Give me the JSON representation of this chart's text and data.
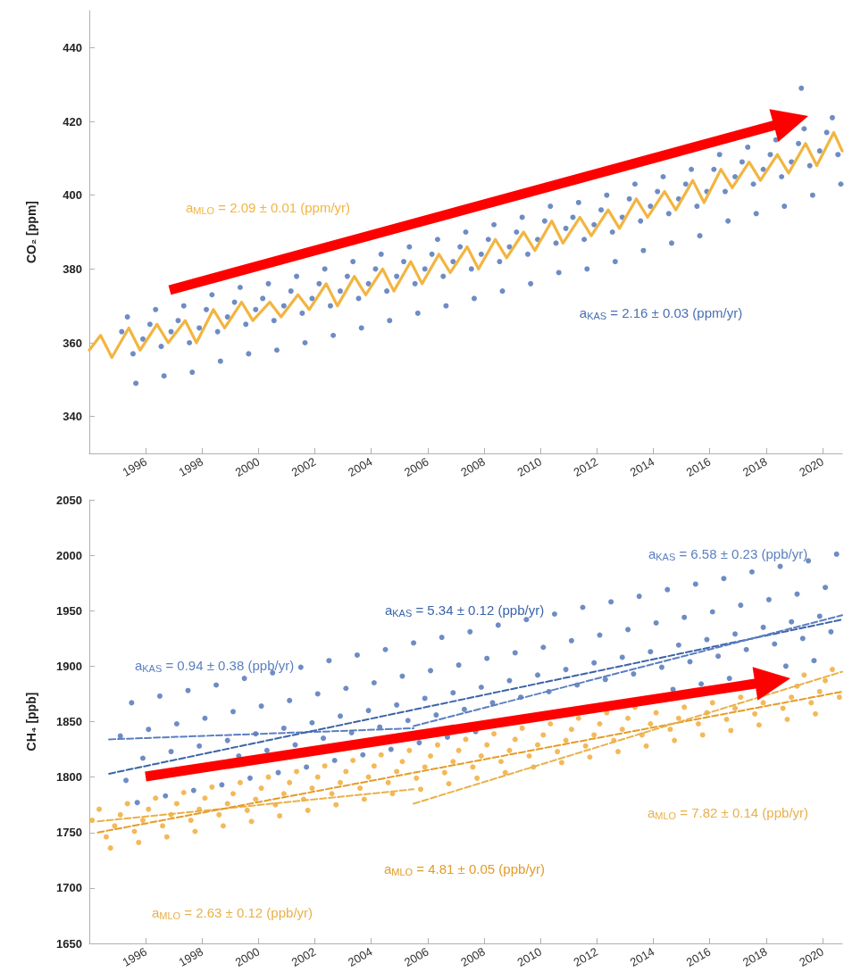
{
  "chart_data": [
    {
      "type": "scatter",
      "ylabel": "CO₂ [ppm]",
      "xlim": [
        1994,
        2020.7
      ],
      "xticks": [
        1996,
        1998,
        2000,
        2002,
        2004,
        2006,
        2008,
        2010,
        2012,
        2014,
        2016,
        2018,
        2020
      ],
      "ylim": [
        330,
        450
      ],
      "yticks": [
        340,
        360,
        380,
        400,
        420,
        440
      ],
      "marker": "circle",
      "annotations": [
        "a$_{MLO}$ = 2.09 ± 0.01 (ppm/yr)",
        "a$_{KAS}$ = 2.16 ± 0.03 (ppm/yr)"
      ],
      "series": [
        {
          "type": "line",
          "color": "#f2b541",
          "marker": "none",
          "line_style": "solid",
          "x": [
            1994.0,
            1994.4,
            1994.8,
            1995.4,
            1995.8,
            1996.4,
            1996.8,
            1997.4,
            1997.8,
            1998.4,
            1998.8,
            1999.4,
            1999.8,
            2000.4,
            2000.8,
            2001.4,
            2001.8,
            2002.4,
            2002.8,
            2003.4,
            2003.8,
            2004.4,
            2004.8,
            2005.4,
            2005.8,
            2006.4,
            2006.8,
            2007.4,
            2007.8,
            2008.4,
            2008.8,
            2009.4,
            2009.8,
            2010.4,
            2010.8,
            2011.4,
            2011.8,
            2012.4,
            2012.8,
            2013.4,
            2013.8,
            2014.4,
            2014.8,
            2015.4,
            2015.8,
            2016.4,
            2016.8,
            2017.4,
            2017.8,
            2018.4,
            2018.8,
            2019.4,
            2019.8,
            2020.4,
            2020.7
          ],
          "values": [
            358,
            362,
            356,
            364,
            358,
            365,
            360,
            366,
            360,
            369,
            364,
            371,
            366,
            371,
            367,
            373,
            369,
            376,
            370,
            378,
            373,
            380,
            374,
            382,
            376,
            384,
            379,
            386,
            380,
            388,
            383,
            390,
            385,
            393,
            387,
            394,
            389,
            396,
            391,
            399,
            394,
            401,
            396,
            404,
            398,
            407,
            402,
            409,
            404,
            411,
            406,
            414,
            408,
            417,
            412
          ]
        },
        {
          "color": "#4a6fb5",
          "x": [
            1995.15,
            1995.35,
            1995.55,
            1995.65,
            1995.9,
            1996.15,
            1996.35,
            1996.55,
            1996.65,
            1996.9,
            1997.15,
            1997.35,
            1997.55,
            1997.65,
            1997.9,
            1998.15,
            1998.35,
            1998.55,
            1998.65,
            1998.9,
            1999.15,
            1999.35,
            1999.55,
            1999.65,
            1999.9,
            2000.15,
            2000.35,
            2000.55,
            2000.65,
            2000.9,
            2001.15,
            2001.35,
            2001.55,
            2001.65,
            2001.9,
            2002.15,
            2002.35,
            2002.55,
            2002.65,
            2002.9,
            2003.15,
            2003.35,
            2003.55,
            2003.65,
            2003.9,
            2004.15,
            2004.35,
            2004.55,
            2004.65,
            2004.9,
            2005.15,
            2005.35,
            2005.55,
            2005.65,
            2005.9,
            2006.15,
            2006.35,
            2006.55,
            2006.65,
            2006.9,
            2007.15,
            2007.35,
            2007.55,
            2007.65,
            2007.9,
            2008.15,
            2008.35,
            2008.55,
            2008.65,
            2008.9,
            2009.15,
            2009.35,
            2009.55,
            2009.65,
            2009.9,
            2010.15,
            2010.35,
            2010.55,
            2010.65,
            2010.9,
            2011.15,
            2011.35,
            2011.55,
            2011.65,
            2011.9,
            2012.15,
            2012.35,
            2012.55,
            2012.65,
            2012.9,
            2013.15,
            2013.35,
            2013.55,
            2013.65,
            2013.9,
            2014.15,
            2014.35,
            2014.55,
            2014.65,
            2014.9,
            2015.15,
            2015.35,
            2015.55,
            2015.65,
            2015.9,
            2016.15,
            2016.35,
            2016.55,
            2016.65,
            2016.9,
            2017.15,
            2017.35,
            2017.55,
            2017.65,
            2017.9,
            2018.15,
            2018.35,
            2018.55,
            2018.65,
            2018.9,
            2019.15,
            2019.35,
            2019.55,
            2019.65,
            2019.9,
            2020.15,
            2020.35,
            2020.55,
            2020.65,
            2019.25
          ],
          "values": [
            363,
            367,
            357,
            349,
            361,
            365,
            369,
            359,
            351,
            363,
            366,
            370,
            360,
            352,
            364,
            369,
            373,
            363,
            355,
            367,
            371,
            375,
            365,
            357,
            369,
            372,
            376,
            366,
            358,
            370,
            374,
            378,
            368,
            360,
            372,
            376,
            380,
            370,
            362,
            374,
            378,
            382,
            372,
            364,
            376,
            380,
            384,
            374,
            366,
            378,
            382,
            386,
            376,
            368,
            380,
            384,
            388,
            378,
            370,
            382,
            386,
            390,
            380,
            372,
            384,
            388,
            392,
            382,
            374,
            386,
            390,
            394,
            384,
            376,
            388,
            393,
            397,
            387,
            379,
            391,
            394,
            398,
            388,
            380,
            392,
            396,
            400,
            390,
            382,
            394,
            399,
            403,
            393,
            385,
            397,
            401,
            405,
            395,
            387,
            399,
            403,
            407,
            397,
            389,
            401,
            407,
            411,
            401,
            393,
            405,
            409,
            413,
            403,
            395,
            407,
            411,
            415,
            405,
            397,
            409,
            414,
            418,
            408,
            400,
            412,
            417,
            421,
            411,
            403,
            429
          ]
        }
      ]
    },
    {
      "type": "scatter",
      "ylabel": "CH₄ [ppb]",
      "xlim": [
        1994,
        2020.7
      ],
      "xticks": [
        1996,
        1998,
        2000,
        2002,
        2004,
        2006,
        2008,
        2010,
        2012,
        2014,
        2016,
        2018,
        2020
      ],
      "ylim": [
        1650,
        2050
      ],
      "yticks": [
        1650,
        1700,
        1750,
        1800,
        1850,
        1900,
        1950,
        2000,
        2050
      ],
      "marker": "circle",
      "annotations": [
        "a$_{KAS}$ = 0.94 ± 0.38 (ppb/yr)",
        "a$_{KAS}$ = 5.34 ± 0.12 (ppb/yr)",
        "a$_{KAS}$ = 6.58 ± 0.23 (ppb/yr)",
        "a$_{MLO}$ = 2.63 ± 0.12 (ppb/yr)",
        "a$_{MLO}$ = 4.81 ± 0.05 (ppb/yr)",
        "a$_{MLO}$ = 7.82 ± 0.14 (ppb/yr)"
      ],
      "series": [
        {
          "type": "line",
          "color": "#5b7fc0",
          "marker": "none",
          "line_style": "dashed",
          "x": [
            1994.7,
            2005.5
          ],
          "values": [
            1834,
            1844
          ]
        },
        {
          "type": "line",
          "color": "#3c64a8",
          "marker": "none",
          "line_style": "dashed",
          "x": [
            1994.7,
            2020.7
          ],
          "values": [
            1803,
            1942
          ]
        },
        {
          "type": "line",
          "color": "#5b7fc0",
          "marker": "none",
          "line_style": "dashed",
          "x": [
            2005.5,
            2020.7
          ],
          "values": [
            1846,
            1946
          ]
        },
        {
          "type": "line",
          "color": "#eab04a",
          "marker": "none",
          "line_style": "dashed",
          "x": [
            1994.3,
            2005.5
          ],
          "values": [
            1760,
            1789
          ]
        },
        {
          "type": "line",
          "color": "#e39c2a",
          "marker": "none",
          "line_style": "dashed",
          "x": [
            1994.3,
            2020.7
          ],
          "values": [
            1750,
            1877
          ]
        },
        {
          "type": "line",
          "color": "#eab04a",
          "marker": "none",
          "line_style": "dashed",
          "x": [
            2005.5,
            2020.7
          ],
          "values": [
            1776,
            1895
          ]
        },
        {
          "color": "#4a6fb5",
          "x": [
            1995.1,
            1995.3,
            1995.5,
            1995.7,
            1995.9,
            1996.1,
            1996.3,
            1996.5,
            1996.7,
            1996.9,
            1997.1,
            1997.3,
            1997.5,
            1997.7,
            1997.9,
            1998.1,
            1998.3,
            1998.5,
            1998.7,
            1998.9,
            1999.1,
            1999.3,
            1999.5,
            1999.7,
            1999.9,
            2000.1,
            2000.3,
            2000.5,
            2000.7,
            2000.9,
            2001.1,
            2001.3,
            2001.5,
            2001.7,
            2001.9,
            2002.1,
            2002.3,
            2002.5,
            2002.7,
            2002.9,
            2003.1,
            2003.3,
            2003.5,
            2003.7,
            2003.9,
            2004.1,
            2004.3,
            2004.5,
            2004.7,
            2004.9,
            2005.1,
            2005.3,
            2005.5,
            2005.7,
            2005.9,
            2006.1,
            2006.3,
            2006.5,
            2006.7,
            2006.9,
            2007.1,
            2007.3,
            2007.5,
            2007.7,
            2007.9,
            2008.1,
            2008.3,
            2008.5,
            2008.7,
            2008.9,
            2009.1,
            2009.3,
            2009.5,
            2009.7,
            2009.9,
            2010.1,
            2010.3,
            2010.5,
            2010.7,
            2010.9,
            2011.1,
            2011.3,
            2011.5,
            2011.7,
            2011.9,
            2012.1,
            2012.3,
            2012.5,
            2012.7,
            2012.9,
            2013.1,
            2013.3,
            2013.5,
            2013.7,
            2013.9,
            2014.1,
            2014.3,
            2014.5,
            2014.7,
            2014.9,
            2015.1,
            2015.3,
            2015.5,
            2015.7,
            2015.9,
            2016.1,
            2016.3,
            2016.5,
            2016.7,
            2016.9,
            2017.1,
            2017.3,
            2017.5,
            2017.7,
            2017.9,
            2018.1,
            2018.3,
            2018.5,
            2018.7,
            2018.9,
            2019.1,
            2019.3,
            2019.5,
            2019.7,
            2019.9,
            2020.1,
            2020.3,
            2020.5
          ],
          "values": [
            1837,
            1797,
            1867,
            1777,
            1817,
            1843,
            null,
            1873,
            1783,
            1823,
            1848,
            null,
            1878,
            1788,
            1828,
            1853,
            null,
            1883,
            1793,
            1833,
            1859,
            1819,
            1889,
            1799,
            1839,
            1864,
            1824,
            1894,
            1804,
            1844,
            1869,
            1829,
            1899,
            1809,
            1849,
            1875,
            1835,
            1905,
            1815,
            1855,
            1880,
            1840,
            1910,
            1820,
            1860,
            1885,
            1845,
            1915,
            1825,
            1865,
            1891,
            1851,
            1921,
            1831,
            1871,
            1896,
            1856,
            1926,
            1836,
            1876,
            1901,
            1861,
            1931,
            1841,
            1881,
            1907,
            1867,
            1937,
            null,
            1887,
            1912,
            1872,
            1942,
            null,
            1892,
            1917,
            1877,
            1947,
            null,
            1897,
            1923,
            1883,
            1953,
            null,
            1903,
            1928,
            1888,
            1958,
            null,
            1908,
            1933,
            1893,
            1963,
            null,
            1913,
            1939,
            1899,
            1969,
            1879,
            1919,
            1944,
            1904,
            1974,
            1884,
            1924,
            1949,
            1909,
            1979,
            1889,
            1929,
            1955,
            1915,
            1985,
            null,
            1935,
            1960,
            1920,
            1990,
            1900,
            1940,
            1965,
            1925,
            1995,
            1905,
            1945,
            1971,
            1931,
            2001
          ]
        },
        {
          "color": "#f0a830",
          "x": [
            1994.1,
            1994.35,
            1994.6,
            1994.75,
            1994.9,
            1995.1,
            1995.35,
            1995.6,
            1995.75,
            1995.9,
            1996.1,
            1996.35,
            1996.6,
            1996.75,
            1996.9,
            1997.1,
            1997.35,
            1997.6,
            1997.75,
            1997.9,
            1998.1,
            1998.35,
            1998.6,
            1998.75,
            1998.9,
            1999.1,
            1999.35,
            1999.6,
            1999.75,
            1999.9,
            2000.1,
            2000.35,
            2000.6,
            2000.75,
            2000.9,
            2001.1,
            2001.35,
            2001.6,
            2001.75,
            2001.9,
            2002.1,
            2002.35,
            2002.6,
            2002.75,
            2002.9,
            2003.1,
            2003.35,
            2003.6,
            2003.75,
            2003.9,
            2004.1,
            2004.35,
            2004.6,
            2004.75,
            2004.9,
            2005.1,
            2005.35,
            2005.6,
            2005.75,
            2005.9,
            2006.1,
            2006.35,
            2006.6,
            2006.75,
            2006.9,
            2007.1,
            2007.35,
            2007.6,
            2007.75,
            2007.9,
            2008.1,
            2008.35,
            2008.6,
            2008.75,
            2008.9,
            2009.1,
            2009.35,
            2009.6,
            2009.75,
            2009.9,
            2010.1,
            2010.35,
            2010.6,
            2010.75,
            2010.9,
            2011.1,
            2011.35,
            2011.6,
            2011.75,
            2011.9,
            2012.1,
            2012.35,
            2012.6,
            2012.75,
            2012.9,
            2013.1,
            2013.35,
            2013.6,
            2013.75,
            2013.9,
            2014.1,
            2014.35,
            2014.6,
            2014.75,
            2014.9,
            2015.1,
            2015.35,
            2015.6,
            2015.75,
            2015.9,
            2016.1,
            2016.35,
            2016.6,
            2016.75,
            2016.9,
            2017.1,
            2017.35,
            2017.6,
            2017.75,
            2017.9,
            2018.1,
            2018.35,
            2018.6,
            2018.75,
            2018.9,
            2019.1,
            2019.35,
            2019.6,
            2019.75,
            2019.9,
            2020.1,
            2020.35,
            2020.6
          ],
          "values": [
            1761,
            1771,
            1746,
            1736,
            1756,
            1766,
            1776,
            1751,
            1741,
            1761,
            1771,
            1781,
            1756,
            1746,
            1766,
            1776,
            1786,
            1761,
            1751,
            1771,
            1781,
            1791,
            1766,
            1756,
            1776,
            1785,
            1795,
            1770,
            1760,
            1780,
            1790,
            1800,
            1775,
            1765,
            1785,
            1795,
            1805,
            1780,
            1770,
            1790,
            1800,
            1810,
            1785,
            1775,
            1795,
            1805,
            1815,
            1790,
            1780,
            1800,
            1810,
            1820,
            1795,
            1785,
            1805,
            1814,
            1824,
            1799,
            1789,
            1809,
            1819,
            1829,
            1804,
            1794,
            1814,
            1824,
            1834,
            1809,
            1799,
            1819,
            1829,
            1839,
            1814,
            1804,
            1824,
            1834,
            1844,
            1819,
            1809,
            1829,
            1838,
            1848,
            1823,
            1813,
            1833,
            1843,
            1853,
            1828,
            1818,
            1838,
            1848,
            1858,
            1833,
            1823,
            1843,
            1853,
            1863,
            1838,
            1828,
            1848,
            1858,
            null,
            1843,
            1833,
            1853,
            1863,
            null,
            1848,
            1838,
            1858,
            1867,
            null,
            1852,
            1842,
            1862,
            1872,
            null,
            1857,
            1847,
            1867,
            null,
            null,
            1862,
            1852,
            1872,
            1882,
            1892,
            1867,
            1857,
            1877,
            1887,
            1897,
            1872
          ]
        }
      ]
    }
  ]
}
